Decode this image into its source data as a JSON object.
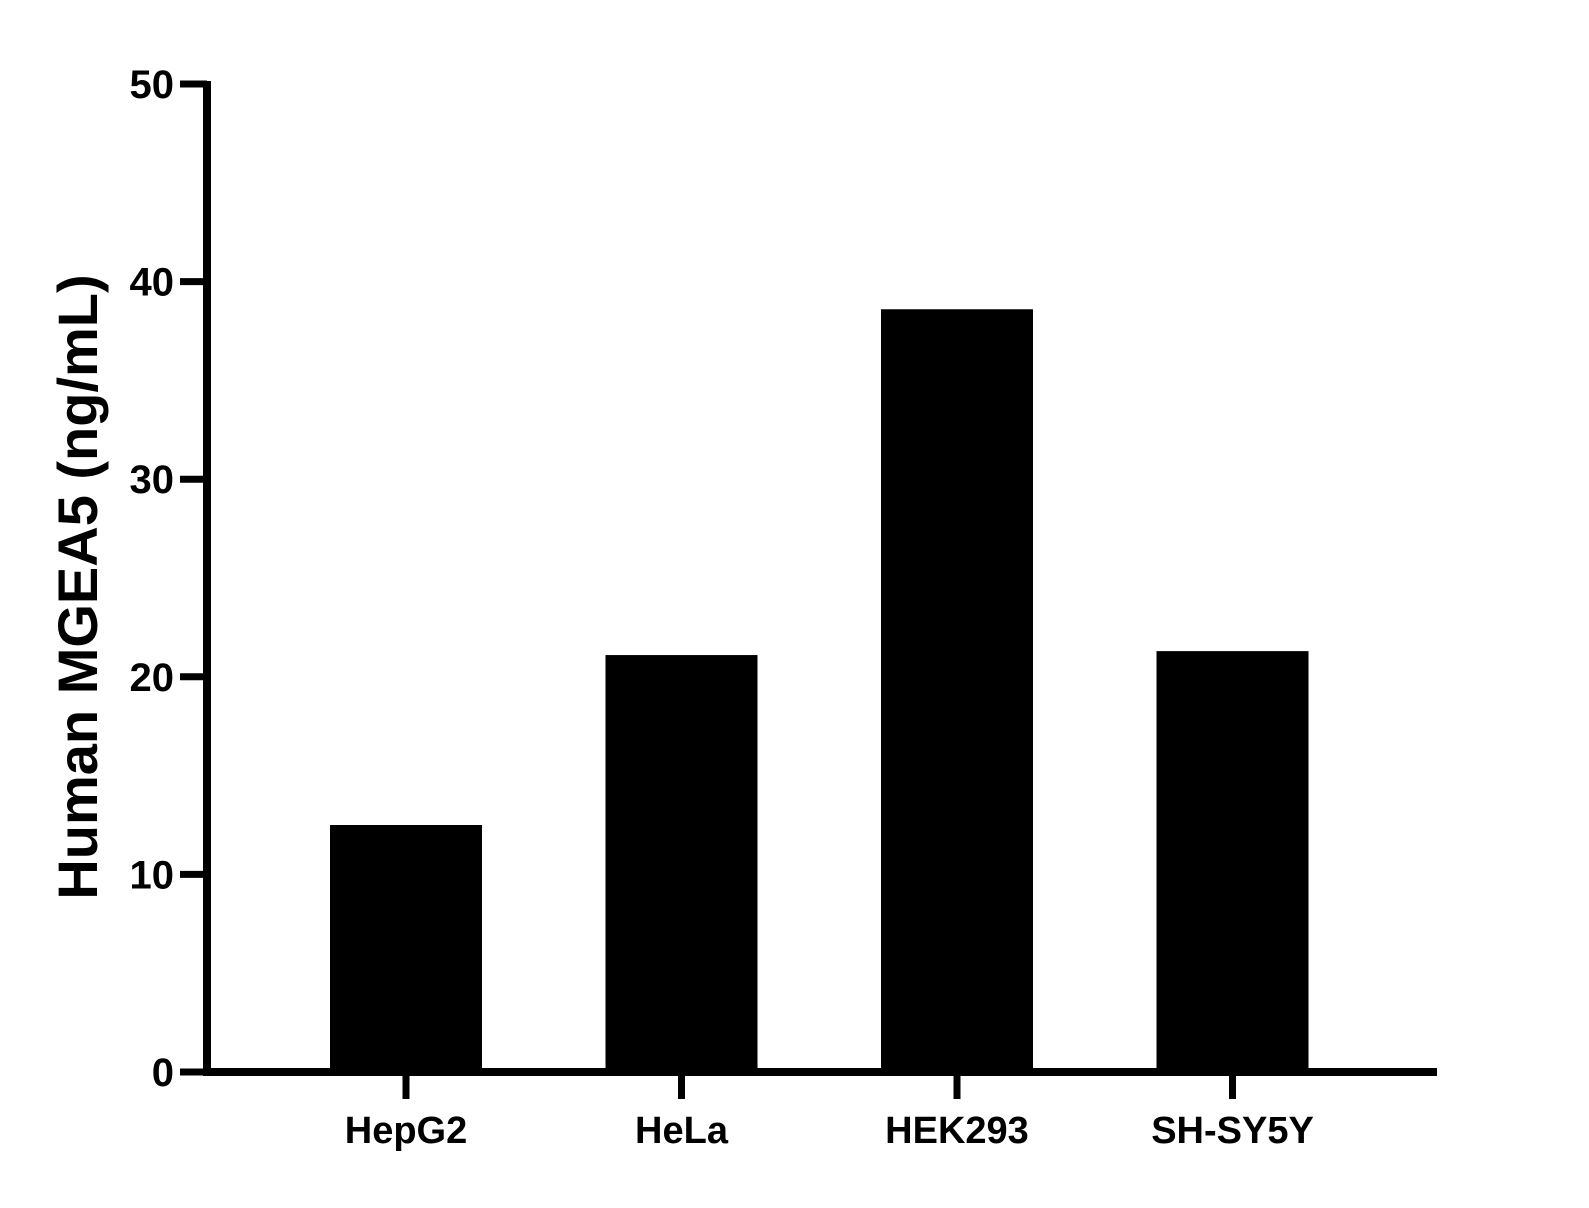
{
  "chart_data": {
    "type": "bar",
    "title": "",
    "xlabel": "",
    "ylabel": "Human MGEA5 (ng/mL)",
    "categories": [
      "HepG2",
      "HeLa",
      "HEK293",
      "SH-SY5Y"
    ],
    "values": [
      12.5,
      21.1,
      38.6,
      21.3
    ],
    "ylim": [
      0,
      50
    ],
    "yticks": [
      0,
      10,
      20,
      30,
      40,
      50
    ],
    "grid": false,
    "legend": "none",
    "colors": {
      "bar": "#000000",
      "axis": "#000000"
    }
  }
}
